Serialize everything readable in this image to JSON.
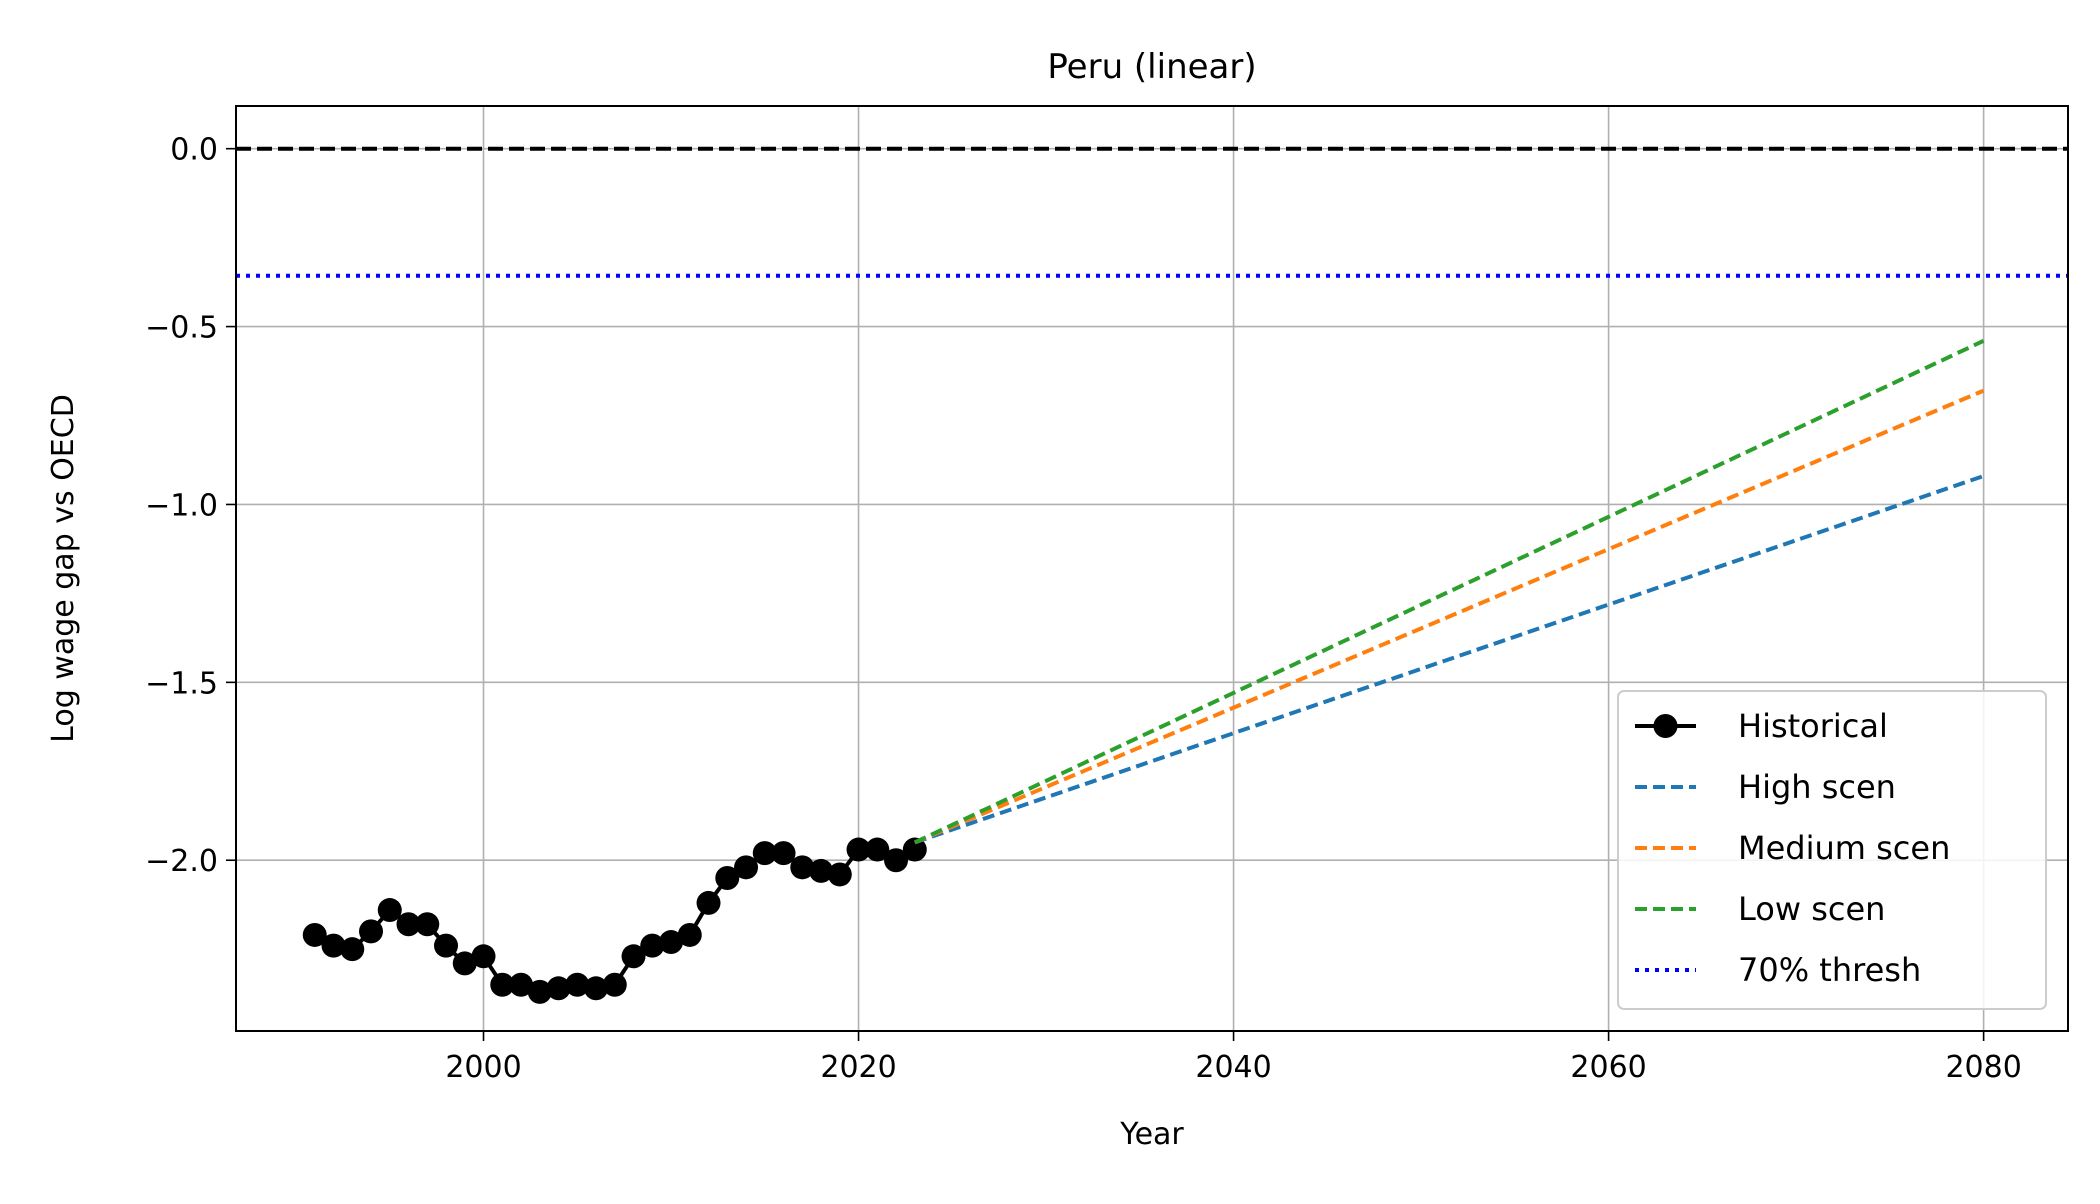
{
  "chart_data": {
    "type": "line",
    "title": "Peru (linear)",
    "xlabel": "Year",
    "ylabel": "Log wage gap vs OECD",
    "xlim": [
      1986.8,
      2084.5
    ],
    "ylim": [
      -2.48,
      0.12
    ],
    "xticks": [
      2000,
      2020,
      2040,
      2060,
      2080
    ],
    "yticks": [
      0.0,
      -0.5,
      -1.0,
      -1.5,
      -2.0
    ],
    "xtick_labels": [
      "2000",
      "2020",
      "2040",
      "2060",
      "2080"
    ],
    "ytick_labels": [
      "0.0",
      "−0.5",
      "−1.0",
      "−1.5",
      "−2.0"
    ],
    "grid": true,
    "legend_position": "lower right",
    "series": [
      {
        "name": "Historical",
        "color": "#000000",
        "style": "solid-marker",
        "x": [
          1991,
          1992,
          1993,
          1994,
          1995,
          1996,
          1997,
          1998,
          1999,
          2000,
          2001,
          2002,
          2003,
          2004,
          2005,
          2006,
          2007,
          2008,
          2009,
          2010,
          2011,
          2012,
          2013,
          2014,
          2015,
          2016,
          2017,
          2018,
          2019,
          2020,
          2021,
          2022,
          2023
        ],
        "y": [
          -2.21,
          -2.24,
          -2.25,
          -2.2,
          -2.14,
          -2.18,
          -2.18,
          -2.24,
          -2.29,
          -2.27,
          -2.35,
          -2.35,
          -2.37,
          -2.36,
          -2.35,
          -2.36,
          -2.35,
          -2.27,
          -2.24,
          -2.23,
          -2.21,
          -2.12,
          -2.05,
          -2.02,
          -1.98,
          -1.98,
          -2.02,
          -2.03,
          -2.04,
          -1.97,
          -1.97,
          -2.0,
          -1.97
        ]
      },
      {
        "name": "High scen",
        "color": "#1f77b4",
        "style": "dashed",
        "x": [
          2023,
          2080
        ],
        "y": [
          -1.95,
          -0.92
        ]
      },
      {
        "name": "Medium scen",
        "color": "#ff7f0e",
        "style": "dashed",
        "x": [
          2023,
          2080
        ],
        "y": [
          -1.95,
          -0.68
        ]
      },
      {
        "name": "Low scen",
        "color": "#2ca02c",
        "style": "dashed",
        "x": [
          2023,
          2080
        ],
        "y": [
          -1.95,
          -0.54
        ]
      },
      {
        "name": "70% thresh",
        "color": "#0000ff",
        "style": "dotted",
        "y": -0.357
      }
    ],
    "reference_line": {
      "y": 0.0,
      "color": "#000000",
      "style": "dashed"
    }
  }
}
